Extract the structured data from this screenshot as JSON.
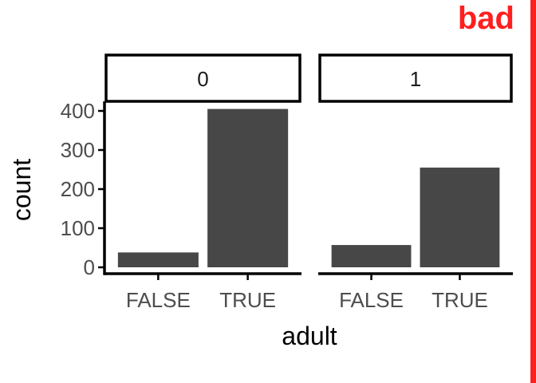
{
  "badge": {
    "text": "bad",
    "color": "#ff1f1f"
  },
  "colors": {
    "bar": "#474747",
    "axis": "#000000",
    "tick_text": "#4d4d4d",
    "background": "#ffffff"
  },
  "chart_data": {
    "type": "bar",
    "facet_variable_values": [
      "0",
      "1"
    ],
    "categories": [
      "FALSE",
      "TRUE"
    ],
    "panels": [
      {
        "facet": "0",
        "values": [
          38,
          405
        ]
      },
      {
        "facet": "1",
        "values": [
          57,
          255
        ]
      }
    ],
    "xlabel": "adult",
    "ylabel": "count",
    "yticks": [
      0,
      100,
      200,
      300,
      400
    ],
    "ylim": [
      0,
      425
    ],
    "grid": false,
    "legend": "none"
  }
}
